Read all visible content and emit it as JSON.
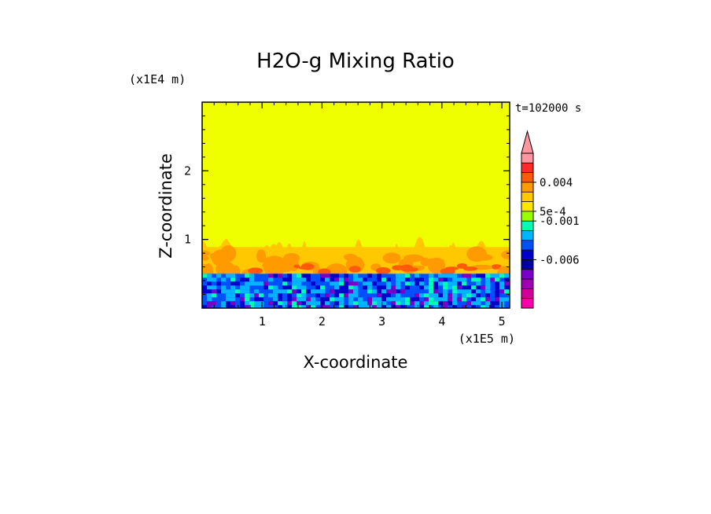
{
  "chart_data": {
    "type": "heatmap",
    "title": "H2O-g Mixing Ratio",
    "xlabel": "X-coordinate",
    "ylabel": "Z-coordinate",
    "x_unit": "(x1E5 m)",
    "y_unit": "(x1E4 m)",
    "time_label": "t=102000 s",
    "xlim": [
      0,
      5.13
    ],
    "ylim": [
      0,
      3.0
    ],
    "x_ticks": [
      1,
      2,
      3,
      4,
      5
    ],
    "y_ticks": [
      1,
      2
    ],
    "grid": false,
    "legend": "right (colorbar)",
    "colorbar": {
      "extend": "max",
      "bins": [
        {
          "color": "#ff96a0"
        },
        {
          "color": "#ff2a2a"
        },
        {
          "color": "#ff5a0a"
        },
        {
          "color": "#ff9a00"
        },
        {
          "color": "#ffc800"
        },
        {
          "color": "#ffe600"
        },
        {
          "color": "#96ff00"
        },
        {
          "color": "#00ffb4"
        },
        {
          "color": "#00b4ff"
        },
        {
          "color": "#0050ff"
        },
        {
          "color": "#0000c8"
        },
        {
          "color": "#0000a0"
        },
        {
          "color": "#7800c8"
        },
        {
          "color": "#a000b4"
        },
        {
          "color": "#d20096"
        },
        {
          "color": "#ff00aa"
        }
      ],
      "labels": [
        "0.004",
        "5e-4",
        "-0.001",
        "-0.006"
      ]
    },
    "layers": [
      {
        "name": "upper region",
        "color": "#f0ff00",
        "z_range": [
          0.95,
          3.0
        ]
      },
      {
        "name": "plume band",
        "colors": [
          "#ffc800",
          "#ff9a00",
          "#ff5a0a"
        ],
        "z_range": [
          0.5,
          1.05
        ]
      },
      {
        "name": "boundary layer",
        "colors": [
          "#0050ff",
          "#00b4ff",
          "#00ffb4",
          "#0000c8",
          "#7800c8"
        ],
        "z_range": [
          0.0,
          0.5
        ]
      }
    ]
  }
}
